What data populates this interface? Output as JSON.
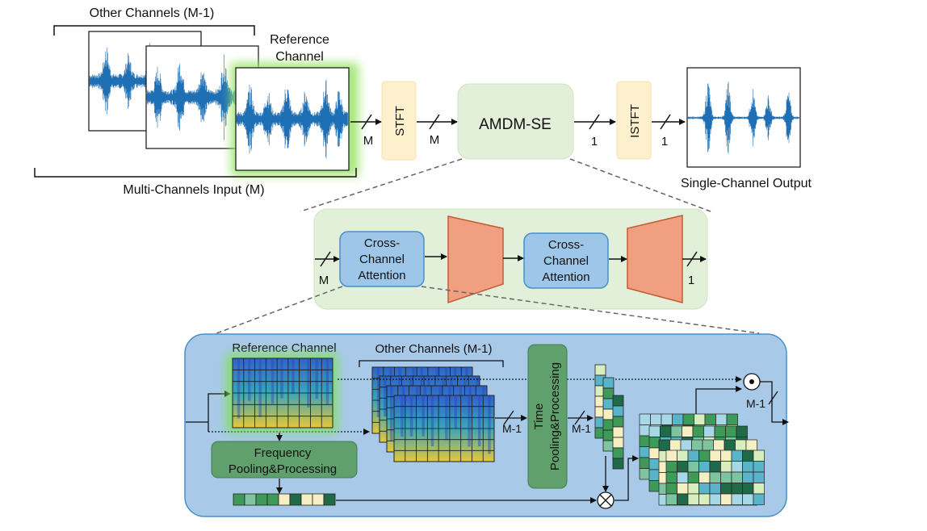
{
  "top": {
    "other_channels": "Other Channels (M-1)",
    "reference_line1": "Reference",
    "reference_line2": "Channel",
    "multi_input": "Multi-Channels Input (M)",
    "stft": "STFT",
    "amdm": "AMDM-SE",
    "istft": "ISTFT",
    "m1": "M",
    "m2": "M",
    "one1": "1",
    "one2": "1",
    "output": "Single-Channel Output"
  },
  "middle": {
    "cca1_line1": "Cross-",
    "cca1_line2": "Channel",
    "cca1_line3": "Attention",
    "cca2_line1": "Cross-",
    "cca2_line2": "Channel",
    "cca2_line3": "Attention",
    "m": "M",
    "one": "1"
  },
  "bottom": {
    "reference_channel": "Reference Channel",
    "other_channels": "Other Channels (M-1)",
    "freq_line1": "Frequency",
    "freq_line2": "Pooling&Processing",
    "time_line1": "Time",
    "time_line2": "Pooling&Processing",
    "m1_a": "M-1",
    "m1_b": "M-1",
    "m1_c": "M-1"
  },
  "colors": {
    "waveform": "#1f6fb5",
    "stft_box": "#fdf0cc",
    "amdm_box": "#e3f0d9",
    "cca_box": "#9ec6e8",
    "trapezoid": "#f0a080",
    "bottom_panel": "#a9c9e8",
    "pool_box": "#5fa06c",
    "glow": "#7fe05a"
  }
}
